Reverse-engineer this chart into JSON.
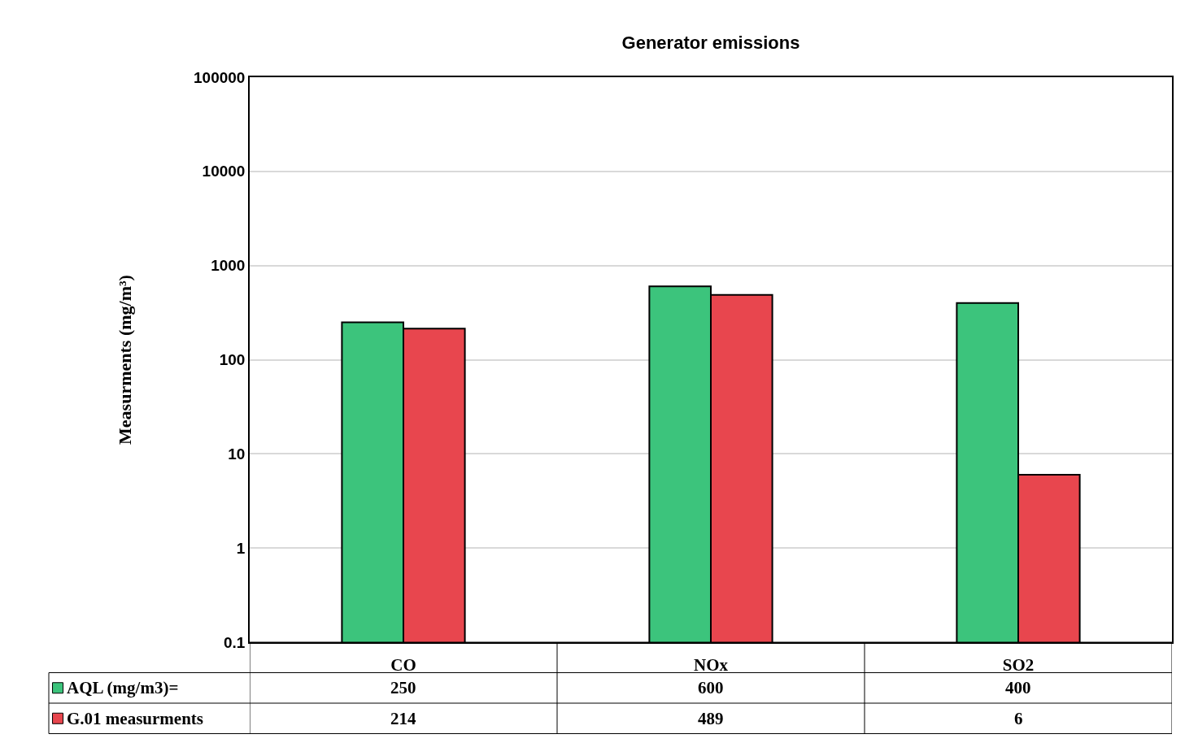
{
  "chart_data": {
    "type": "bar",
    "title": "Generator emissions",
    "ylabel": "Measurments (mg/m³)",
    "categories": [
      "CO",
      "NOx",
      "SO2"
    ],
    "series": [
      {
        "name": "AQL (mg/m3)=",
        "color": "#3cc47c",
        "values": [
          250,
          600,
          400
        ]
      },
      {
        "name": "G.01 measurments",
        "color": "#e8464e",
        "values": [
          214,
          489,
          6
        ]
      }
    ],
    "log": "y",
    "ylim": [
      0.1,
      100000
    ],
    "yticks": [
      0.1,
      1,
      10,
      100,
      1000,
      10000,
      100000
    ],
    "grid": "y",
    "data_labels": true,
    "legend": "bottom left"
  }
}
